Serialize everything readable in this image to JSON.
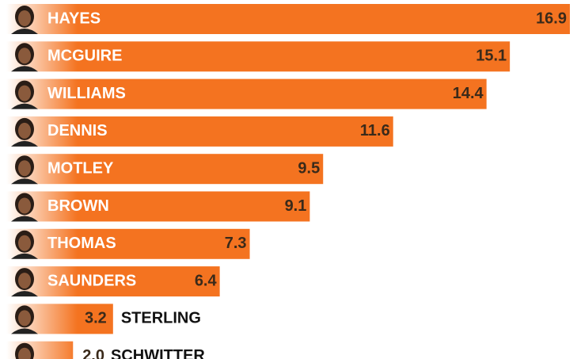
{
  "chart_data": {
    "type": "bar",
    "orientation": "horizontal",
    "categories": [
      "HAYES",
      "MCGUIRE",
      "WILLIAMS",
      "DENNIS",
      "MOTLEY",
      "BROWN",
      "THOMAS",
      "SAUNDERS",
      "STERLING",
      "SCHWITTER"
    ],
    "values": [
      16.9,
      15.1,
      14.4,
      11.6,
      9.5,
      9.1,
      7.3,
      6.4,
      3.2,
      2.0
    ],
    "value_labels": [
      "16.9",
      "15.1",
      "14.4",
      "11.6",
      "9.5",
      "9.1",
      "7.3",
      "6.4",
      "3.2",
      "2.0"
    ],
    "color": "#f47320"
  }
}
